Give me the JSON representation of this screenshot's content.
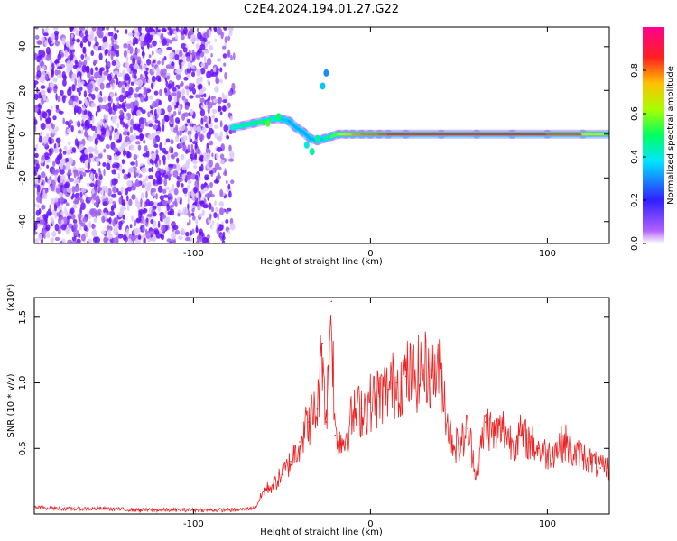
{
  "title": "C2E4.2024.194.01.27.G22",
  "chart_data": [
    {
      "type": "heatmap",
      "xlabel": "Height of straight line (km)",
      "ylabel": "Frequency (Hz)",
      "xlim": [
        -190,
        135
      ],
      "ylim": [
        -50,
        49
      ],
      "x_ticks": [
        -100,
        0,
        100
      ],
      "y_ticks": [
        -40,
        -20,
        0,
        20,
        40
      ],
      "colorbar": {
        "label": "Normalized spectral amplitude",
        "range": [
          0,
          1
        ],
        "ticks": [
          0.0,
          0.2,
          0.4,
          0.6,
          0.8
        ],
        "colors": [
          "#ffffff",
          "#8a2be2",
          "#1e3cff",
          "#00e5ff",
          "#00ff40",
          "#c8ff00",
          "#ffa000",
          "#ff2020",
          "#ff00a0"
        ]
      },
      "noise_region_x": [
        -190,
        -75
      ],
      "ridge": {
        "x": [
          -78,
          -72,
          -66,
          -60,
          -55,
          -50,
          -46,
          -42,
          -38,
          -34,
          -30,
          -26,
          -22,
          -18,
          -14,
          -10,
          -5,
          0,
          5,
          10,
          20,
          40,
          60,
          80,
          100,
          120,
          135
        ],
        "freq": [
          3,
          4,
          5,
          6,
          7,
          7,
          6,
          3,
          1,
          -2,
          -3,
          -2,
          -1,
          0,
          0,
          0,
          0,
          0,
          0,
          0,
          0,
          0,
          0,
          0,
          0,
          0,
          0
        ],
        "amplitude": [
          0.4,
          0.45,
          0.5,
          0.5,
          0.45,
          0.4,
          0.3,
          0.35,
          0.3,
          0.35,
          0.3,
          0.4,
          0.5,
          0.6,
          0.7,
          0.75,
          0.8,
          0.8,
          0.8,
          0.85,
          0.85,
          0.85,
          0.85,
          0.85,
          0.85,
          0.8,
          0.6
        ]
      }
    },
    {
      "type": "line",
      "xlabel": "Height of straight line (km)",
      "ylabel": "SNR (10 * v/v)",
      "y_multiplier": "(x10⁴)",
      "xlim": [
        -190,
        135
      ],
      "ylim": [
        0,
        1.65
      ],
      "x_ticks": [
        -100,
        0,
        100
      ],
      "y_ticks": [
        0.5,
        1.0,
        1.5
      ],
      "series": [
        {
          "color": "#ee2222",
          "x": [
            -190,
            -170,
            -150,
            -130,
            -110,
            -90,
            -75,
            -65,
            -60,
            -55,
            -50,
            -45,
            -40,
            -35,
            -30,
            -27,
            -25,
            -22,
            -20,
            -15,
            -10,
            -5,
            0,
            5,
            10,
            15,
            20,
            25,
            30,
            35,
            40,
            45,
            50,
            55,
            60,
            65,
            70,
            75,
            80,
            85,
            90,
            95,
            100,
            105,
            110,
            115,
            120,
            125,
            130,
            135
          ],
          "values": [
            0.05,
            0.04,
            0.04,
            0.03,
            0.03,
            0.03,
            0.03,
            0.05,
            0.18,
            0.22,
            0.3,
            0.4,
            0.55,
            0.7,
            0.8,
            1.3,
            0.7,
            1.62,
            0.6,
            0.55,
            0.75,
            0.8,
            0.85,
            0.9,
            0.95,
            1.0,
            1.05,
            1.05,
            1.1,
            1.1,
            1.05,
            0.6,
            0.5,
            0.65,
            0.3,
            0.7,
            0.6,
            0.65,
            0.55,
            0.6,
            0.55,
            0.5,
            0.45,
            0.5,
            0.55,
            0.45,
            0.45,
            0.4,
            0.35,
            0.35
          ]
        }
      ]
    }
  ]
}
